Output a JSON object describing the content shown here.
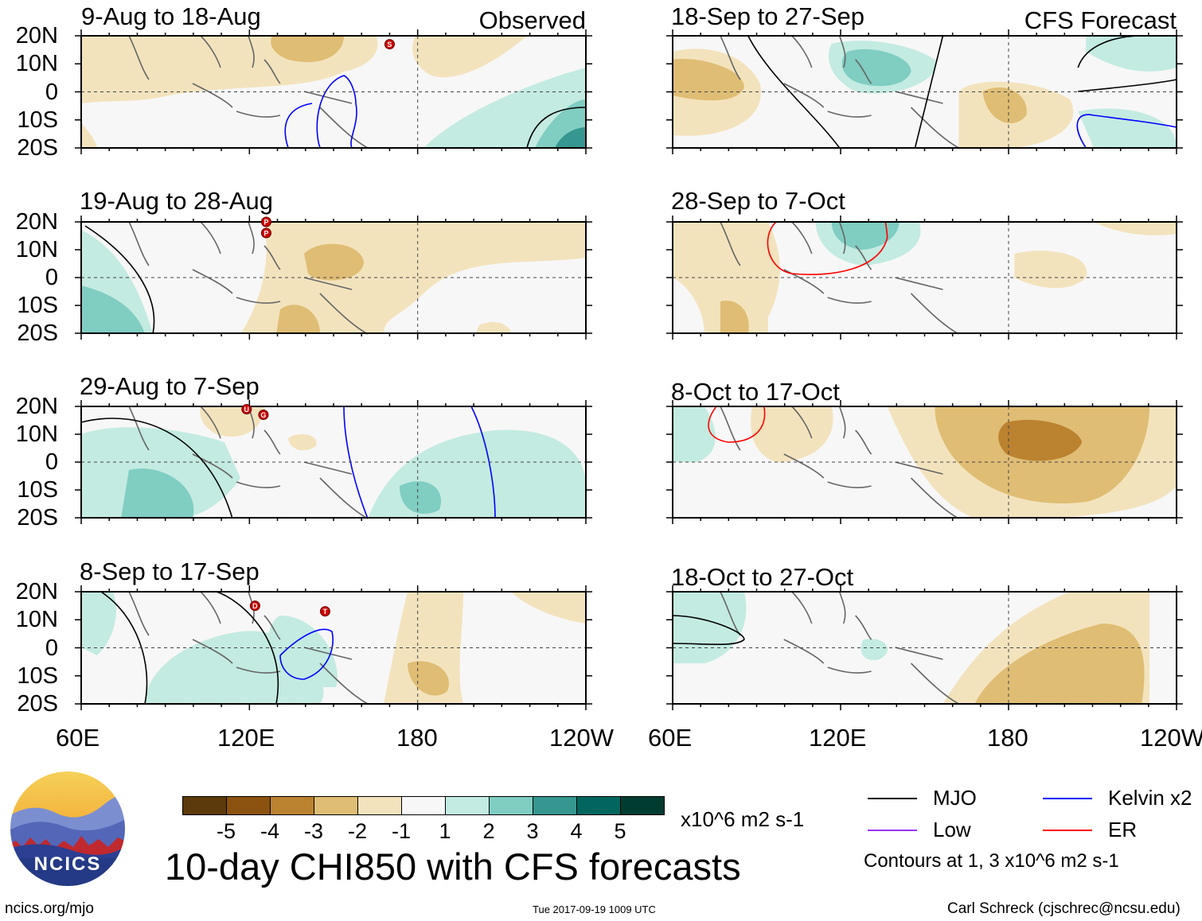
{
  "chart_data": {
    "type": "heatmap",
    "title": "10-day CHI850 with CFS forecasts",
    "variable": "CHI850 (850-hPa velocity potential)",
    "units": "x10^6 m2 s-1",
    "lon_labels": [
      "60E",
      "120E",
      "180",
      "120W"
    ],
    "lat_labels": [
      "20N",
      "10N",
      "0",
      "10S",
      "20S"
    ],
    "lon_range": [
      60,
      240
    ],
    "lat_range": [
      -20,
      20
    ],
    "colorbar": {
      "levels": [
        "-5",
        "-4",
        "-3",
        "-2",
        "-1",
        "1",
        "2",
        "3",
        "4",
        "5"
      ],
      "colors": [
        "#5c3a0b",
        "#8c520f",
        "#bb8230",
        "#dfbd74",
        "#f3e3bd",
        "#f7f7f7",
        "#c3ebe1",
        "#80cdc1",
        "#35978f",
        "#01665e",
        "#003c30"
      ]
    },
    "contour_note": "Contours at 1, 3 x10^6 m2 s-1",
    "legend": [
      {
        "label": "MJO",
        "color": "#000000"
      },
      {
        "label": "Kelvin x2",
        "color": "#0000ff"
      },
      {
        "label": "Low",
        "color": "#9933ff"
      },
      {
        "label": "ER",
        "color": "#ff0000"
      }
    ],
    "panels": [
      {
        "title": "9-Aug to 18-Aug",
        "tag": "Observed",
        "column": "left",
        "row": 1
      },
      {
        "title": "19-Aug to 28-Aug",
        "tag": "",
        "column": "left",
        "row": 2
      },
      {
        "title": "29-Aug to 7-Sep",
        "tag": "",
        "column": "left",
        "row": 3
      },
      {
        "title": "8-Sep to 17-Sep",
        "tag": "",
        "column": "left",
        "row": 4
      },
      {
        "title": "18-Sep to 27-Sep",
        "tag": "CFS Forecast",
        "column": "right",
        "row": 1
      },
      {
        "title": "28-Sep to 7-Oct",
        "tag": "",
        "column": "right",
        "row": 2
      },
      {
        "title": "8-Oct to 17-Oct",
        "tag": "",
        "column": "right",
        "row": 3
      },
      {
        "title": "18-Oct to 27-Oct",
        "tag": "",
        "column": "right",
        "row": 4
      }
    ],
    "storms": [
      {
        "panel": 1,
        "label": "S",
        "lon": 170,
        "lat": 17
      },
      {
        "panel": 2,
        "label": "P",
        "lon": 126,
        "lat": 20
      },
      {
        "panel": 2,
        "label": "P",
        "lon": 126,
        "lat": 16
      },
      {
        "panel": 3,
        "label": "U",
        "lon": 119,
        "lat": 19
      },
      {
        "panel": 3,
        "label": "G",
        "lon": 125,
        "lat": 17
      },
      {
        "panel": 4,
        "label": "D",
        "lon": 122,
        "lat": 15
      },
      {
        "panel": 4,
        "label": "T",
        "lon": 147,
        "lat": 13
      }
    ]
  },
  "logo": {
    "text": "NCICS"
  },
  "footer": {
    "left": "ncics.org/mjo",
    "center": "Tue 2017-09-19 1009 UTC",
    "right": "Carl Schreck (cjschrec@ncsu.edu)"
  }
}
